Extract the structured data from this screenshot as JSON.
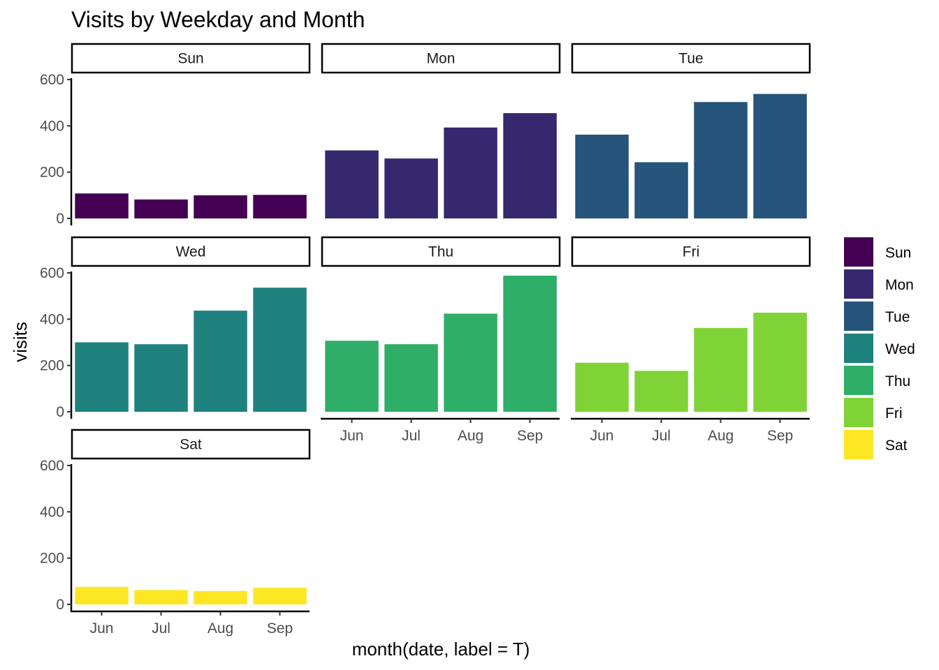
{
  "chart_data": {
    "type": "bar",
    "title": "Visits by Weekday and Month",
    "xlabel": "month(date, label = T)",
    "ylabel": "visits",
    "categories": [
      "Jun",
      "Jul",
      "Aug",
      "Sep"
    ],
    "ylim": [
      0,
      720
    ],
    "yticks": [
      "0",
      "200",
      "400",
      "600"
    ],
    "ytick_values": [
      0,
      200,
      400,
      600
    ],
    "grid": false,
    "legend_position": "right",
    "facets": [
      {
        "name": "Sun",
        "color": "#440154",
        "values": [
          108,
          82,
          100,
          102
        ]
      },
      {
        "name": "Mon",
        "color": "#35286E",
        "values": [
          294,
          259,
          393,
          455
        ]
      },
      {
        "name": "Tue",
        "color": "#26547A",
        "values": [
          362,
          243,
          503,
          538
        ]
      },
      {
        "name": "Wed",
        "color": "#1F817D",
        "values": [
          300,
          292,
          437,
          536
        ]
      },
      {
        "name": "Thu",
        "color": "#2FAE68",
        "values": [
          307,
          292,
          424,
          588
        ]
      },
      {
        "name": "Fri",
        "color": "#7FD336",
        "values": [
          212,
          177,
          362,
          428
        ]
      },
      {
        "name": "Sat",
        "color": "#FDE725",
        "values": [
          76,
          62,
          58,
          72
        ]
      }
    ]
  }
}
